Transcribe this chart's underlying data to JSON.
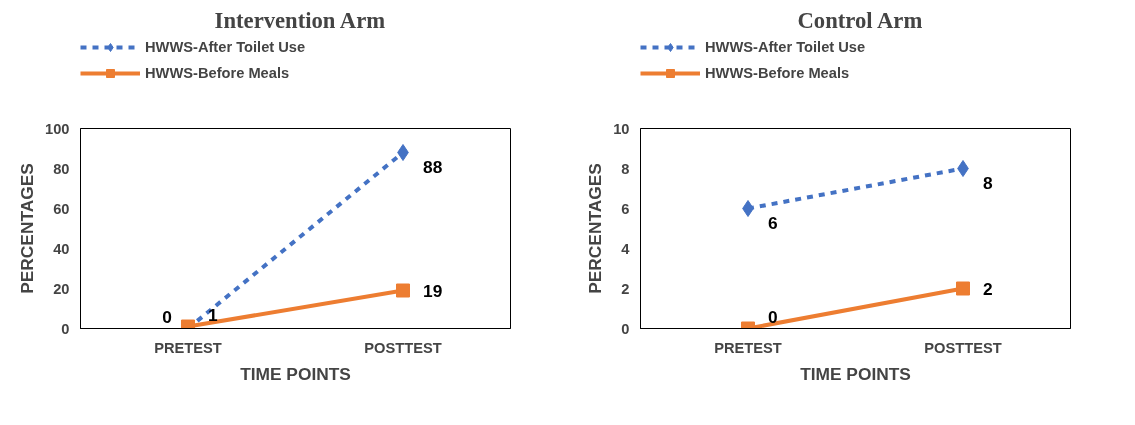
{
  "chart_data": [
    {
      "type": "line",
      "title": "Intervention Arm",
      "xlabel": "TIME POINTS",
      "ylabel": "PERCENTAGES",
      "categories": [
        "PRETEST",
        "POSTTEST"
      ],
      "series": [
        {
          "name": "HWWS-After Toilet Use",
          "color": "#4472c4",
          "values": [
            0,
            88
          ],
          "marker": "diamond",
          "line_style": "dashed"
        },
        {
          "name": "HWWS-Before Meals",
          "color": "#ed7d31",
          "values": [
            1,
            19
          ],
          "marker": "square",
          "line_style": "solid"
        }
      ],
      "ylim": [
        0,
        100
      ],
      "yticks": [
        0,
        20,
        40,
        60,
        80,
        100
      ],
      "grid": false,
      "legend": "top",
      "data_labels": true
    },
    {
      "type": "line",
      "title": "Control Arm",
      "xlabel": "TIME POINTS",
      "ylabel": "PERCENTAGES",
      "categories": [
        "PRETEST",
        "POSTTEST"
      ],
      "series": [
        {
          "name": "HWWS-After Toilet Use",
          "color": "#4472c4",
          "values": [
            6,
            8
          ],
          "marker": "diamond",
          "line_style": "dashed"
        },
        {
          "name": "HWWS-Before Meals",
          "color": "#ed7d31",
          "values": [
            0,
            2
          ],
          "marker": "square",
          "line_style": "solid"
        }
      ],
      "ylim": [
        0,
        10
      ],
      "yticks": [
        0,
        2,
        4,
        6,
        8,
        10
      ],
      "grid": false,
      "legend": "top",
      "data_labels": true
    }
  ]
}
